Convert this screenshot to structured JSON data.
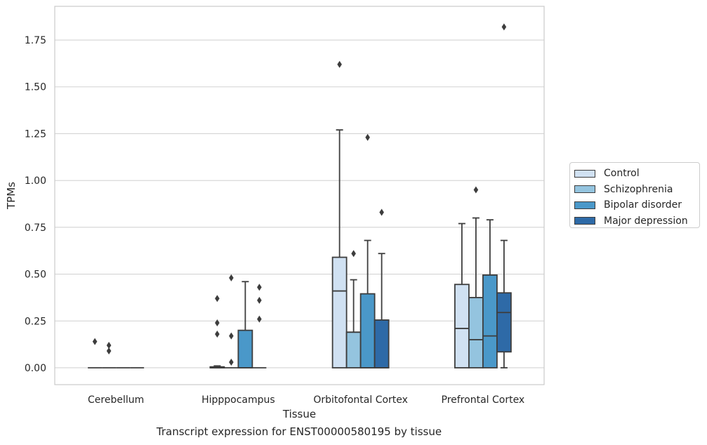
{
  "chart_data": {
    "type": "boxplot",
    "caption": "Transcript expression for ENST00000580195 by tissue",
    "xlabel": "Tissue",
    "ylabel": "TPMs",
    "ylim": [
      -0.09,
      1.93
    ],
    "yticks": [
      0.0,
      0.25,
      0.5,
      0.75,
      1.0,
      1.25,
      1.5,
      1.75
    ],
    "ytick_labels": [
      "0.00",
      "0.25",
      "0.50",
      "0.75",
      "1.00",
      "1.25",
      "1.50",
      "1.75"
    ],
    "grid": true,
    "legend_position": "right",
    "categories": [
      "Cerebellum",
      "Hipppocampus",
      "Orbitofontal Cortex",
      "Prefrontal Cortex"
    ],
    "series": [
      {
        "name": "Control",
        "color": "#d0e1f2",
        "boxes": [
          {
            "q1": 0,
            "median": 0,
            "q3": 0,
            "whisker_low": 0,
            "whisker_high": 0,
            "outliers": [
              0.14
            ]
          },
          {
            "q1": 0,
            "median": 0,
            "q3": 0.005,
            "whisker_low": 0,
            "whisker_high": 0.01,
            "outliers": [
              0.37,
              0.24,
              0.18
            ]
          },
          {
            "q1": 0,
            "median": 0.41,
            "q3": 0.59,
            "whisker_low": 0,
            "whisker_high": 1.27,
            "outliers": [
              1.62
            ]
          },
          {
            "q1": 0,
            "median": 0.21,
            "q3": 0.445,
            "whisker_low": 0,
            "whisker_high": 0.77,
            "outliers": []
          }
        ]
      },
      {
        "name": "Schizophrenia",
        "color": "#94c4df",
        "boxes": [
          {
            "q1": 0,
            "median": 0,
            "q3": 0,
            "whisker_low": 0,
            "whisker_high": 0,
            "outliers": [
              0.12,
              0.09
            ]
          },
          {
            "q1": 0,
            "median": 0,
            "q3": 0,
            "whisker_low": 0,
            "whisker_high": 0,
            "outliers": [
              0.48,
              0.17,
              0.03
            ]
          },
          {
            "q1": 0,
            "median": 0.19,
            "q3": 0.19,
            "whisker_low": 0,
            "whisker_high": 0.47,
            "outliers": [
              0.61
            ]
          },
          {
            "q1": 0,
            "median": 0.15,
            "q3": 0.375,
            "whisker_low": 0,
            "whisker_high": 0.8,
            "outliers": [
              0.95
            ]
          }
        ]
      },
      {
        "name": "Bipolar disorder",
        "color": "#4a98c9",
        "boxes": [
          {
            "q1": 0,
            "median": 0,
            "q3": 0,
            "whisker_low": 0,
            "whisker_high": 0,
            "outliers": []
          },
          {
            "q1": 0,
            "median": 0,
            "q3": 0.2,
            "whisker_low": 0,
            "whisker_high": 0.46,
            "outliers": []
          },
          {
            "q1": 0,
            "median": 0,
            "q3": 0.395,
            "whisker_low": 0,
            "whisker_high": 0.68,
            "outliers": [
              1.23
            ]
          },
          {
            "q1": 0,
            "median": 0.17,
            "q3": 0.495,
            "whisker_low": 0,
            "whisker_high": 0.79,
            "outliers": []
          }
        ]
      },
      {
        "name": "Major depression",
        "color": "#2e6aa7",
        "boxes": [
          {
            "q1": 0,
            "median": 0,
            "q3": 0,
            "whisker_low": 0,
            "whisker_high": 0,
            "outliers": []
          },
          {
            "q1": 0,
            "median": 0,
            "q3": 0,
            "whisker_low": 0,
            "whisker_high": 0,
            "outliers": [
              0.43,
              0.36,
              0.26
            ]
          },
          {
            "q1": 0,
            "median": 0,
            "q3": 0.255,
            "whisker_low": 0,
            "whisker_high": 0.61,
            "outliers": [
              0.83
            ]
          },
          {
            "q1": 0.085,
            "median": 0.295,
            "q3": 0.4,
            "whisker_low": 0,
            "whisker_high": 0.68,
            "outliers": [
              1.82
            ]
          }
        ]
      }
    ]
  }
}
